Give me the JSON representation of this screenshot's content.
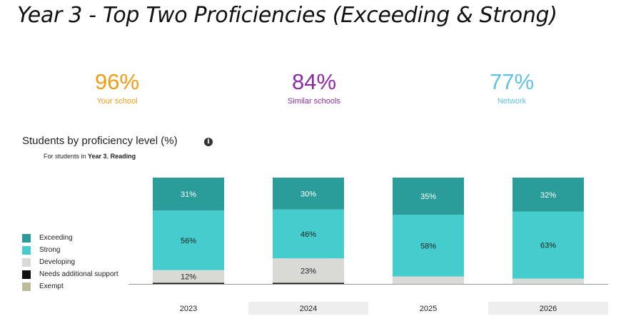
{
  "heading": "Year 3 - Top Two Proficiencies (Exceeding & Strong)",
  "stats": [
    {
      "value": "96%",
      "label": "Your school",
      "color": "#f29b16"
    },
    {
      "value": "84%",
      "label": "Similar schools",
      "color": "#8d2aa6"
    },
    {
      "value": "77%",
      "label": "Network",
      "color": "#62c2e3"
    }
  ],
  "chart_title": "Students by proficiency level (%)",
  "info_icon": "info-icon",
  "subtitle": {
    "prefix": "For students in ",
    "year": "Year 3",
    "sep": ", ",
    "subject": "Reading"
  },
  "legend": [
    {
      "label": "Exceeding",
      "color": "#2a9d9a"
    },
    {
      "label": "Strong",
      "color": "#45cdcd"
    },
    {
      "label": "Developing",
      "color": "#d9d9d6"
    },
    {
      "label": "Needs additional support",
      "color": "#111111"
    },
    {
      "label": "Exempt",
      "color": "#bdbb99"
    }
  ],
  "chart_data": {
    "type": "bar",
    "stacked": true,
    "categories": [
      "2023",
      "2024",
      "2025",
      "2026"
    ],
    "series": [
      {
        "name": "Needs additional support",
        "color": "#111111",
        "values": [
          1,
          1,
          0,
          0
        ]
      },
      {
        "name": "Developing",
        "color": "#d9d9d6",
        "values": [
          12,
          23,
          7,
          5
        ]
      },
      {
        "name": "Strong",
        "color": "#45cdcd",
        "values": [
          56,
          46,
          58,
          63
        ]
      },
      {
        "name": "Exceeding",
        "color": "#2a9d9a",
        "values": [
          31,
          30,
          35,
          32
        ]
      }
    ],
    "labels": [
      [
        "",
        "12%",
        "56%",
        "31%"
      ],
      [
        "",
        "23%",
        "46%",
        "30%"
      ],
      [
        "",
        "",
        "58%",
        "35%"
      ],
      [
        "",
        "",
        "63%",
        "32%"
      ]
    ],
    "ylim": [
      0,
      100
    ],
    "grid": false,
    "legend_position": "left"
  }
}
